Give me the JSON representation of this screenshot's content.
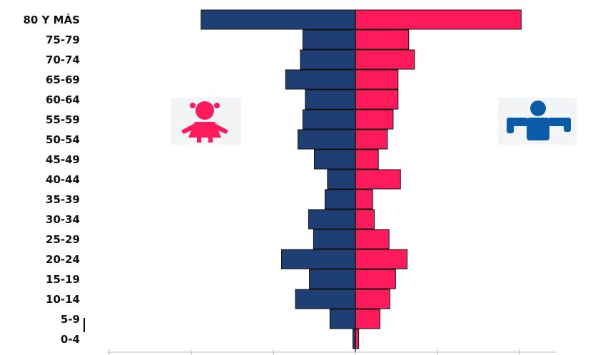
{
  "chart_data": {
    "type": "bar",
    "orientation": "horizontal",
    "layout": "population-pyramid",
    "categories": [
      "80 Y MÁS",
      "75-79",
      "70-74",
      "65-69",
      "60-64",
      "55-59",
      "50-54",
      "45-49",
      "40-44",
      "35-39",
      "30-34",
      "25-29",
      "20-24",
      "15-19",
      "10-14",
      "5-9",
      "0-4"
    ],
    "series": [
      {
        "side": "left",
        "color": "#1f3e73",
        "values": [
          188,
          64,
          67,
          85,
          61,
          64,
          70,
          50,
          34,
          37,
          57,
          51,
          90,
          56,
          73,
          31,
          3
        ]
      },
      {
        "side": "right",
        "color": "#ff1a5b",
        "values": [
          202,
          65,
          72,
          52,
          52,
          46,
          39,
          28,
          55,
          21,
          23,
          41,
          63,
          49,
          42,
          30,
          4
        ]
      }
    ],
    "xlim": [
      -300,
      300
    ],
    "grid": false,
    "legend": "icons",
    "icons": {
      "left": "girl-icon",
      "right": "boy-icon",
      "left_color": "#ff1a5b",
      "right_color": "#0b5ca8"
    }
  }
}
